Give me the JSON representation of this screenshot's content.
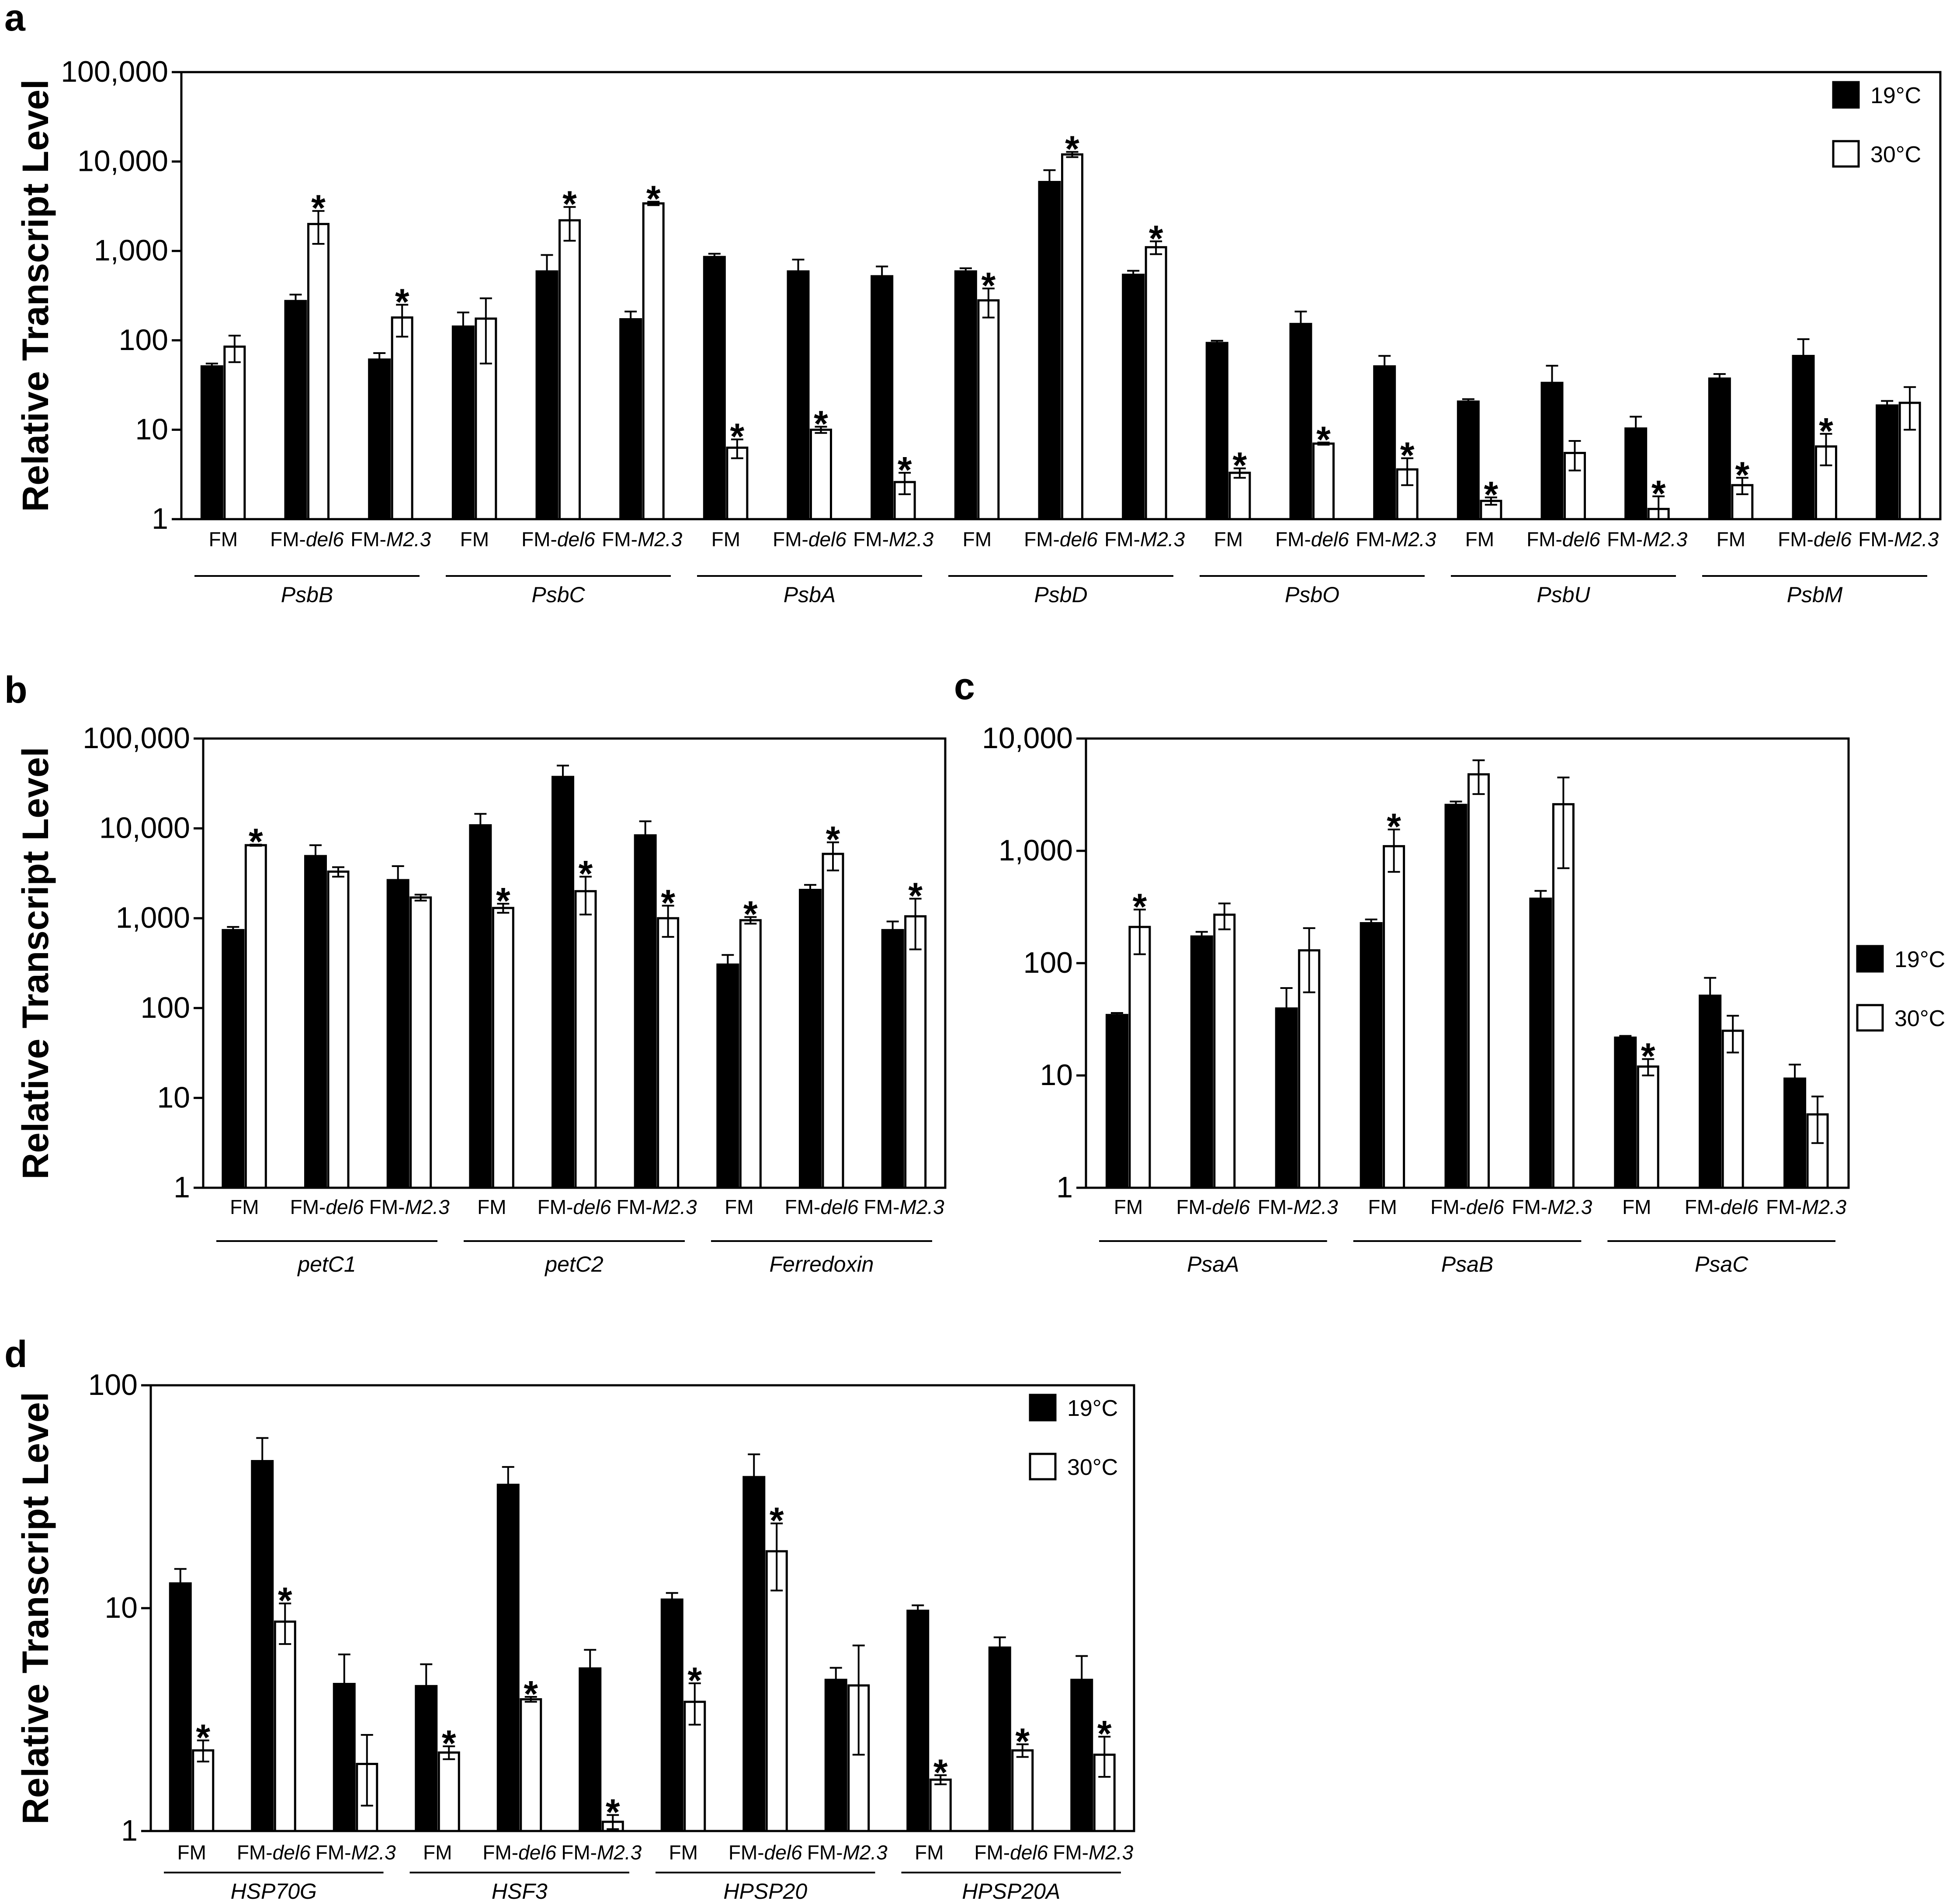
{
  "chart_data": [
    {
      "panel": "a",
      "type": "bar",
      "ylabel": "Relative Transcript Level",
      "yscale": "log",
      "ylim": [
        1,
        100000
      ],
      "yticks": [
        "1",
        "10",
        "100",
        "1,000",
        "10,000",
        "100,000"
      ],
      "legend": {
        "position": "top-right",
        "entries": [
          "19°C",
          "30°C"
        ]
      },
      "categories": [
        "FM",
        "FM-del6",
        "FM-M2.3"
      ],
      "groups": [
        {
          "label": "PsbB",
          "v19": [
            52,
            280,
            62
          ],
          "e19": [
            3,
            45,
            10
          ],
          "v30": [
            85,
            2000,
            180
          ],
          "e30": [
            28,
            800,
            70
          ],
          "sig": [
            false,
            true,
            true
          ]
        },
        {
          "label": "PsbC",
          "v19": [
            145,
            600,
            175
          ],
          "e19": [
            60,
            300,
            35
          ],
          "v30": [
            175,
            2200,
            3400
          ],
          "e30": [
            120,
            900,
            150
          ],
          "sig": [
            false,
            true,
            true
          ]
        },
        {
          "label": "PsbA",
          "v19": [
            870,
            600,
            530
          ],
          "e19": [
            60,
            200,
            140
          ],
          "v30": [
            6.3,
            10,
            2.6
          ],
          "e30": [
            1.5,
            0.8,
            0.7
          ],
          "sig": [
            true,
            true,
            true
          ]
        },
        {
          "label": "PsbD",
          "v19": [
            600,
            6000,
            550
          ],
          "e19": [
            40,
            2000,
            50
          ],
          "v30": [
            280,
            12000,
            1100
          ],
          "e30": [
            100,
            800,
            180
          ],
          "sig": [
            true,
            true,
            true
          ]
        },
        {
          "label": "PsbO",
          "v19": [
            95,
            155,
            52
          ],
          "e19": [
            4,
            55,
            15
          ],
          "v30": [
            3.3,
            7,
            3.6
          ],
          "e30": [
            0.4,
            0.2,
            1.2
          ],
          "sig": [
            true,
            true,
            true
          ]
        },
        {
          "label": "PsbU",
          "v19": [
            21,
            34,
            10.5
          ],
          "e19": [
            1,
            18,
            3.5
          ],
          "v30": [
            1.6,
            5.5,
            1.3
          ],
          "e30": [
            0.15,
            2,
            0.5
          ],
          "sig": [
            true,
            false,
            true
          ]
        },
        {
          "label": "PsbM",
          "v19": [
            38,
            68,
            19
          ],
          "e19": [
            4,
            35,
            2
          ],
          "v30": [
            2.4,
            6.5,
            20
          ],
          "e30": [
            0.5,
            2.5,
            10
          ],
          "sig": [
            true,
            true,
            false
          ]
        }
      ]
    },
    {
      "panel": "b",
      "type": "bar",
      "ylabel": "Relative Transcript Level",
      "yscale": "log",
      "ylim": [
        1,
        100000
      ],
      "yticks": [
        "1",
        "10",
        "100",
        "1,000",
        "10,000",
        "100,000"
      ],
      "legend": null,
      "categories": [
        "FM",
        "FM-del6",
        "FM-M2.3"
      ],
      "groups": [
        {
          "label": "petC1",
          "v19": [
            750,
            5000,
            2700
          ],
          "e19": [
            50,
            1500,
            1100
          ],
          "v30": [
            6500,
            3300,
            1700
          ],
          "e30": [
            100,
            400,
            130
          ],
          "sig": [
            true,
            false,
            false
          ]
        },
        {
          "label": "petC2",
          "v19": [
            11000,
            38000,
            8500
          ],
          "e19": [
            3500,
            12000,
            3500
          ],
          "v30": [
            1300,
            2000,
            1000
          ],
          "e30": [
            150,
            900,
            380
          ],
          "sig": [
            true,
            true,
            true
          ]
        },
        {
          "label": "Ferredoxin",
          "v19": [
            310,
            2100,
            750
          ],
          "e19": [
            80,
            250,
            170
          ],
          "v30": [
            950,
            5200,
            1050
          ],
          "e30": [
            80,
            1800,
            600
          ],
          "sig": [
            true,
            true,
            true
          ]
        }
      ]
    },
    {
      "panel": "c",
      "type": "bar",
      "ylabel": "",
      "yscale": "log",
      "ylim": [
        1,
        10000
      ],
      "yticks": [
        "1",
        "10",
        "100",
        "1,000",
        "10,000"
      ],
      "legend": {
        "position": "right",
        "entries": [
          "19°C",
          "30°C"
        ]
      },
      "categories": [
        "FM",
        "FM-del6",
        "FM-M2.3"
      ],
      "groups": [
        {
          "label": "PsaA",
          "v19": [
            35,
            175,
            40
          ],
          "e19": [
            1,
            15,
            20
          ],
          "v30": [
            210,
            270,
            130
          ],
          "e30": [
            90,
            70,
            75
          ],
          "sig": [
            true,
            false,
            false
          ]
        },
        {
          "label": "PsaB",
          "v19": [
            230,
            2600,
            380
          ],
          "e19": [
            15,
            150,
            60
          ],
          "v30": [
            1100,
            4800,
            2600
          ],
          "e30": [
            450,
            1600,
            1900
          ],
          "sig": [
            true,
            false,
            false
          ]
        },
        {
          "label": "PsaC",
          "v19": [
            22,
            52,
            9.5
          ],
          "e19": [
            0.5,
            22,
            3
          ],
          "v30": [
            12,
            25,
            4.5
          ],
          "e30": [
            2,
            9,
            2
          ],
          "sig": [
            true,
            false,
            false
          ]
        }
      ]
    },
    {
      "panel": "d",
      "type": "bar",
      "ylabel": "Relative Transcript Level",
      "yscale": "log",
      "ylim": [
        1,
        100
      ],
      "yticks": [
        "1",
        "10",
        "100"
      ],
      "legend": {
        "position": "top-right",
        "entries": [
          "19°C",
          "30°C"
        ]
      },
      "categories": [
        "FM",
        "FM-del6",
        "FM-M2.3"
      ],
      "groups": [
        {
          "label": "HSP70G",
          "v19": [
            13,
            46,
            4.6
          ],
          "e19": [
            2,
            12,
            1.6
          ],
          "v30": [
            2.3,
            8.7,
            2
          ],
          "e30": [
            0.25,
            1.8,
            0.7
          ],
          "sig": [
            true,
            true,
            false
          ]
        },
        {
          "label": "HSF3",
          "v19": [
            4.5,
            36,
            5.4
          ],
          "e19": [
            1.1,
            7,
            1.1
          ],
          "v30": [
            2.25,
            3.9,
            1.1
          ],
          "e30": [
            0.15,
            0.1,
            0.08
          ],
          "sig": [
            true,
            true,
            true
          ]
        },
        {
          "label": "HPSP20",
          "v19": [
            11,
            39,
            4.8
          ],
          "e19": [
            0.7,
            10,
            0.6
          ],
          "v30": [
            3.8,
            18,
            4.5
          ],
          "e30": [
            0.8,
            6,
            2.3
          ],
          "sig": [
            true,
            true,
            false
          ]
        },
        {
          "label": "HPSP20A",
          "v19": [
            9.8,
            6.7,
            4.8
          ],
          "e19": [
            0.5,
            0.7,
            1.3
          ],
          "v30": [
            1.7,
            2.3,
            2.2
          ],
          "e30": [
            0.08,
            0.15,
            0.45
          ],
          "sig": [
            true,
            true,
            true
          ]
        }
      ]
    }
  ]
}
